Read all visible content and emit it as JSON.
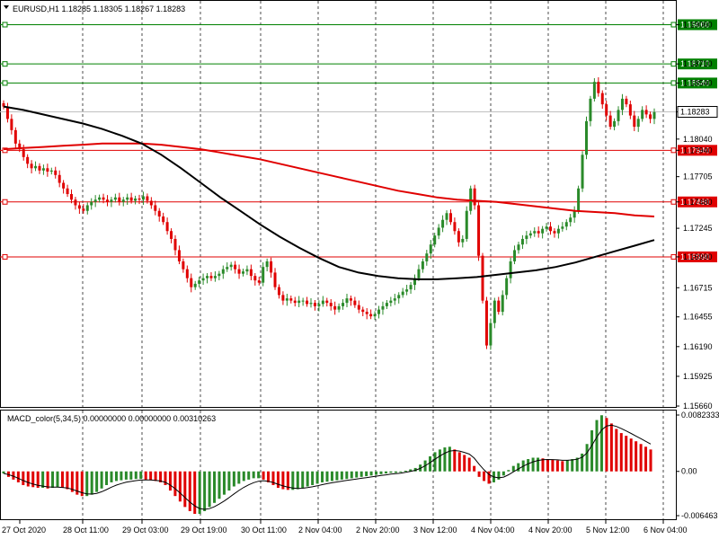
{
  "header": {
    "symbol_info": "EURUSD,H1  1.18285 1.18305 1.18267 1.18283",
    "macd_info": "MACD_color(5,34,5) 0.00000000 0.00000000 0.00310263"
  },
  "colors": {
    "bull": "#2a8a2a",
    "bear": "#e00000",
    "ma_fast": "#e00000",
    "ma_slow": "#000000",
    "level_line": "#008000",
    "level_line_red": "#ff0000",
    "grid": "#000000",
    "current_price_line": "#c0c0c0"
  },
  "chart_data": [
    {
      "type": "candlestick",
      "title": "EURUSD,H1",
      "y_labels": [
        "1.19060",
        "1.18710",
        "1.18540",
        "1.18283",
        "1.18040",
        "1.17940",
        "1.17705",
        "1.17480",
        "1.17245",
        "1.16990",
        "1.16715",
        "1.16455",
        "1.16190",
        "1.15925",
        "1.15660"
      ],
      "x_labels": [
        "27 Oct 2020",
        "28 Oct 11:00",
        "29 Oct 03:00",
        "29 Oct 19:00",
        "30 Oct 11:00",
        "2 Nov 04:00",
        "2 Nov 20:00",
        "3 Nov 12:00",
        "4 Nov 04:00",
        "4 Nov 20:00",
        "5 Nov 12:00",
        "6 Nov 04:00"
      ],
      "ylim": [
        1.1566,
        1.192
      ],
      "current_price": 1.18283,
      "levels": [
        {
          "value": 1.1906,
          "label": "1.19060",
          "color": "#008000"
        },
        {
          "value": 1.1871,
          "label": "1.18710",
          "color": "#008000"
        },
        {
          "value": 1.1854,
          "label": "1.18540",
          "color": "#008000"
        },
        {
          "value": 1.1794,
          "label": "1.17940",
          "color": "#e00000"
        },
        {
          "value": 1.1748,
          "label": "1.17480",
          "color": "#e00000"
        },
        {
          "value": 1.1699,
          "label": "1.16990",
          "color": "#e00000"
        }
      ],
      "close_path": [
        1.1833,
        1.1822,
        1.1812,
        1.18,
        1.1795,
        1.1788,
        1.1782,
        1.1778,
        1.178,
        1.1776,
        1.1778,
        1.1775,
        1.1776,
        1.1772,
        1.1765,
        1.176,
        1.1755,
        1.175,
        1.1745,
        1.1742,
        1.174,
        1.1745,
        1.1748,
        1.175,
        1.1752,
        1.175,
        1.1748,
        1.175,
        1.1752,
        1.1748,
        1.175,
        1.1752,
        1.1749,
        1.1751,
        1.175,
        1.1753,
        1.1749,
        1.1745,
        1.174,
        1.1735,
        1.173,
        1.1722,
        1.1715,
        1.1705,
        1.1695,
        1.1688,
        1.168,
        1.1672,
        1.1675,
        1.1678,
        1.168,
        1.1682,
        1.168,
        1.1682,
        1.1684,
        1.1688,
        1.169,
        1.1692,
        1.1688,
        1.1684,
        1.1686,
        1.1688,
        1.1682,
        1.1678,
        1.1676,
        1.169,
        1.1695,
        1.1685,
        1.1672,
        1.1665,
        1.166,
        1.1662,
        1.166,
        1.1658,
        1.166,
        1.166,
        1.1657,
        1.1658,
        1.1655,
        1.1657,
        1.166,
        1.1658,
        1.1655,
        1.1652,
        1.1655,
        1.1658,
        1.1662,
        1.166,
        1.1656,
        1.1652,
        1.165,
        1.1648,
        1.1646,
        1.1648,
        1.1652,
        1.1655,
        1.1658,
        1.166,
        1.1662,
        1.1665,
        1.1668,
        1.167,
        1.1674,
        1.168,
        1.1688,
        1.1695,
        1.1702,
        1.171,
        1.1718,
        1.1725,
        1.1732,
        1.1738,
        1.173,
        1.1722,
        1.1712,
        1.1715,
        1.174,
        1.176,
        1.1745,
        1.17,
        1.166,
        1.162,
        1.164,
        1.166,
        1.165,
        1.1665,
        1.168,
        1.1695,
        1.1705,
        1.171,
        1.1715,
        1.1718,
        1.172,
        1.1722,
        1.172,
        1.1724,
        1.1726,
        1.1722,
        1.172,
        1.1724,
        1.1726,
        1.173,
        1.1734,
        1.174,
        1.176,
        1.179,
        1.182,
        1.184,
        1.1855,
        1.1845,
        1.1835,
        1.1825,
        1.1815,
        1.182,
        1.183,
        1.184,
        1.1835,
        1.1825,
        1.1815,
        1.1822,
        1.183,
        1.1826,
        1.1822,
        1.1828
      ],
      "ma_fast_path": [
        1.1795,
        1.1796,
        1.1797,
        1.1798,
        1.1799,
        1.18,
        1.18,
        1.18,
        1.1799,
        1.1797,
        1.1795,
        1.1792,
        1.1789,
        1.1786,
        1.1782,
        1.1778,
        1.1774,
        1.177,
        1.1766,
        1.1762,
        1.1758,
        1.1755,
        1.1752,
        1.175,
        1.1749,
        1.1748,
        1.1746,
        1.1744,
        1.1742,
        1.174,
        1.1739,
        1.1738,
        1.1736,
        1.1735
      ],
      "ma_slow_path": [
        1.1833,
        1.183,
        1.1826,
        1.1822,
        1.1818,
        1.1813,
        1.1807,
        1.18,
        1.179,
        1.1778,
        1.1765,
        1.1752,
        1.174,
        1.1728,
        1.1717,
        1.1707,
        1.1698,
        1.169,
        1.1685,
        1.1682,
        1.168,
        1.1679,
        1.1679,
        1.168,
        1.1681,
        1.1683,
        1.1685,
        1.1687,
        1.169,
        1.1694,
        1.1699,
        1.1704,
        1.1709,
        1.1714
      ]
    },
    {
      "type": "histogram",
      "title": "MACD_color(5,34,5)",
      "y_labels": [
        "0.0082333",
        "0.00",
        "-0.006463"
      ],
      "ylim": [
        -0.006463,
        0.0082333
      ],
      "values": [
        -0.0003,
        -0.0008,
        -0.0012,
        -0.0016,
        -0.002,
        -0.0022,
        -0.0023,
        -0.0024,
        -0.0024,
        -0.0025,
        -0.0024,
        -0.0023,
        -0.0024,
        -0.0026,
        -0.003,
        -0.0034,
        -0.0036,
        -0.0036,
        -0.0034,
        -0.003,
        -0.0025,
        -0.002,
        -0.0016,
        -0.0014,
        -0.0013,
        -0.0012,
        -0.0012,
        -0.0011,
        -0.0011,
        -0.0012,
        -0.0013,
        -0.0014,
        -0.0016,
        -0.002,
        -0.0028,
        -0.0036,
        -0.0044,
        -0.0052,
        -0.0058,
        -0.0062,
        -0.0062,
        -0.0058,
        -0.0052,
        -0.0046,
        -0.004,
        -0.0034,
        -0.0028,
        -0.0022,
        -0.0018,
        -0.0014,
        -0.0012,
        -0.001,
        -0.001,
        -0.0012,
        -0.0016,
        -0.002,
        -0.0024,
        -0.0026,
        -0.0027,
        -0.0027,
        -0.0026,
        -0.0024,
        -0.0022,
        -0.002,
        -0.0018,
        -0.0016,
        -0.0015,
        -0.0014,
        -0.0013,
        -0.0012,
        -0.0011,
        -0.001,
        -0.0009,
        -0.0008,
        -0.0007,
        -0.0006,
        -0.0005,
        -0.0004,
        -0.0003,
        -0.0002,
        -0.0002,
        -0.0001,
        0.0001,
        0.0003,
        0.0005,
        0.001,
        0.0016,
        0.0022,
        0.0028,
        0.0032,
        0.0035,
        0.0036,
        0.0032,
        0.0028,
        0.0024,
        0.002,
        0.0008,
        -0.0008,
        -0.0014,
        -0.0018,
        -0.0016,
        -0.0012,
        -0.0006,
        0.0002,
        0.0008,
        0.0012,
        0.0016,
        0.0018,
        0.002,
        0.002,
        0.0019,
        0.0018,
        0.0017,
        0.0016,
        0.0015,
        0.0016,
        0.0018,
        0.002,
        0.0026,
        0.004,
        0.006,
        0.0075,
        0.0082,
        0.0078,
        0.007,
        0.0062,
        0.0056,
        0.0052,
        0.0048,
        0.0044,
        0.004,
        0.0036,
        0.0032
      ]
    }
  ]
}
